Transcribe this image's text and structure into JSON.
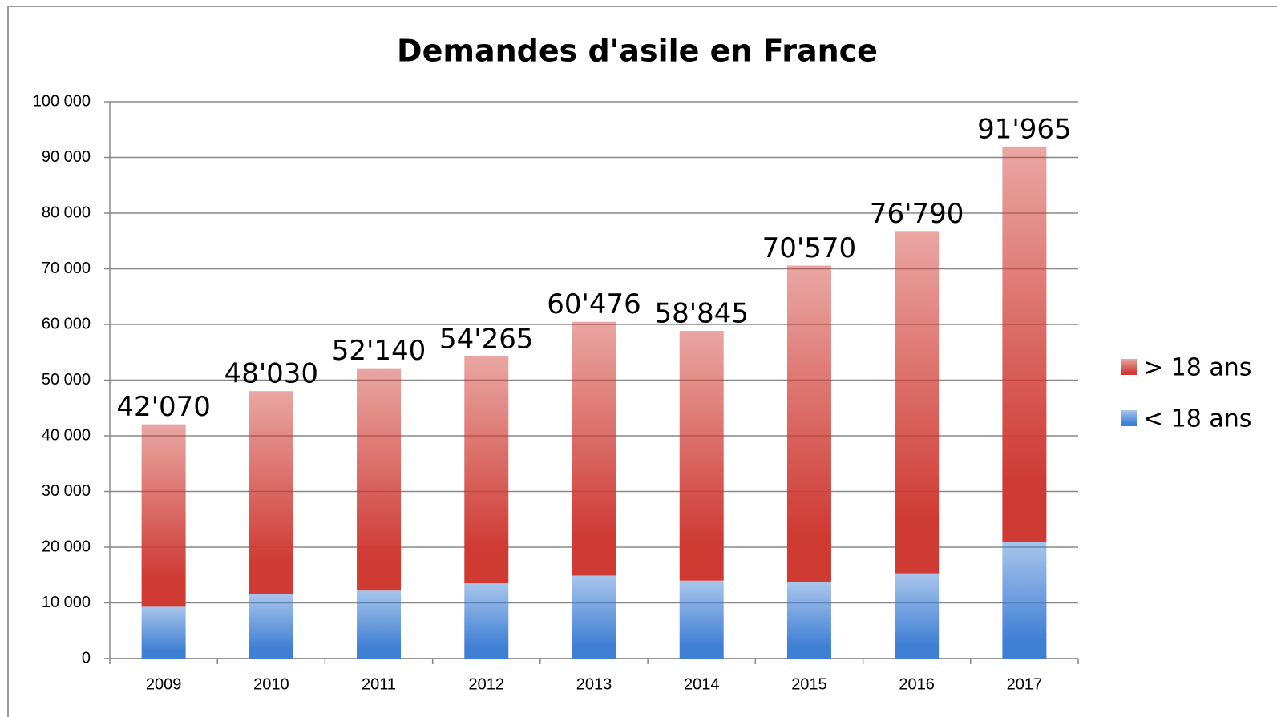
{
  "chart_data": {
    "type": "stacked-bar",
    "title": "Demandes d'asile en France",
    "categories": [
      "2009",
      "2010",
      "2011",
      "2012",
      "2013",
      "2014",
      "2015",
      "2016",
      "2017"
    ],
    "series": [
      {
        "name": "< 18 ans",
        "color": "#3f7fd4",
        "values": [
          9300,
          11600,
          12200,
          13500,
          14900,
          14000,
          13700,
          15300,
          21000
        ]
      },
      {
        "name": "> 18 ans",
        "color": "#cf3a33",
        "values": [
          32770,
          36430,
          39940,
          40765,
          45576,
          44845,
          56870,
          61490,
          70965
        ]
      }
    ],
    "totals": [
      42070,
      48030,
      52140,
      54265,
      60476,
      58845,
      70570,
      76790,
      91965
    ],
    "total_labels": [
      "42'070",
      "48'030",
      "52'140",
      "54'265",
      "60'476",
      "58'845",
      "70'570",
      "76'790",
      "91'965"
    ],
    "ylim": [
      0,
      100000
    ],
    "yticks": [
      0,
      {
        "value": 10000,
        "label": "10 000"
      },
      {
        "value": 20000,
        "label": "20 000"
      },
      {
        "value": 30000,
        "label": "30 000"
      },
      {
        "value": 40000,
        "label": "40 000"
      },
      {
        "value": 50000,
        "label": "50 000"
      },
      {
        "value": 60000,
        "label": "60 000"
      },
      {
        "value": 70000,
        "label": "70 000"
      },
      {
        "value": 80000,
        "label": "80 000"
      },
      {
        "value": 90000,
        "label": "90 000"
      },
      {
        "value": 100000,
        "label": "100 000"
      }
    ],
    "grid": true,
    "legend": "right"
  }
}
